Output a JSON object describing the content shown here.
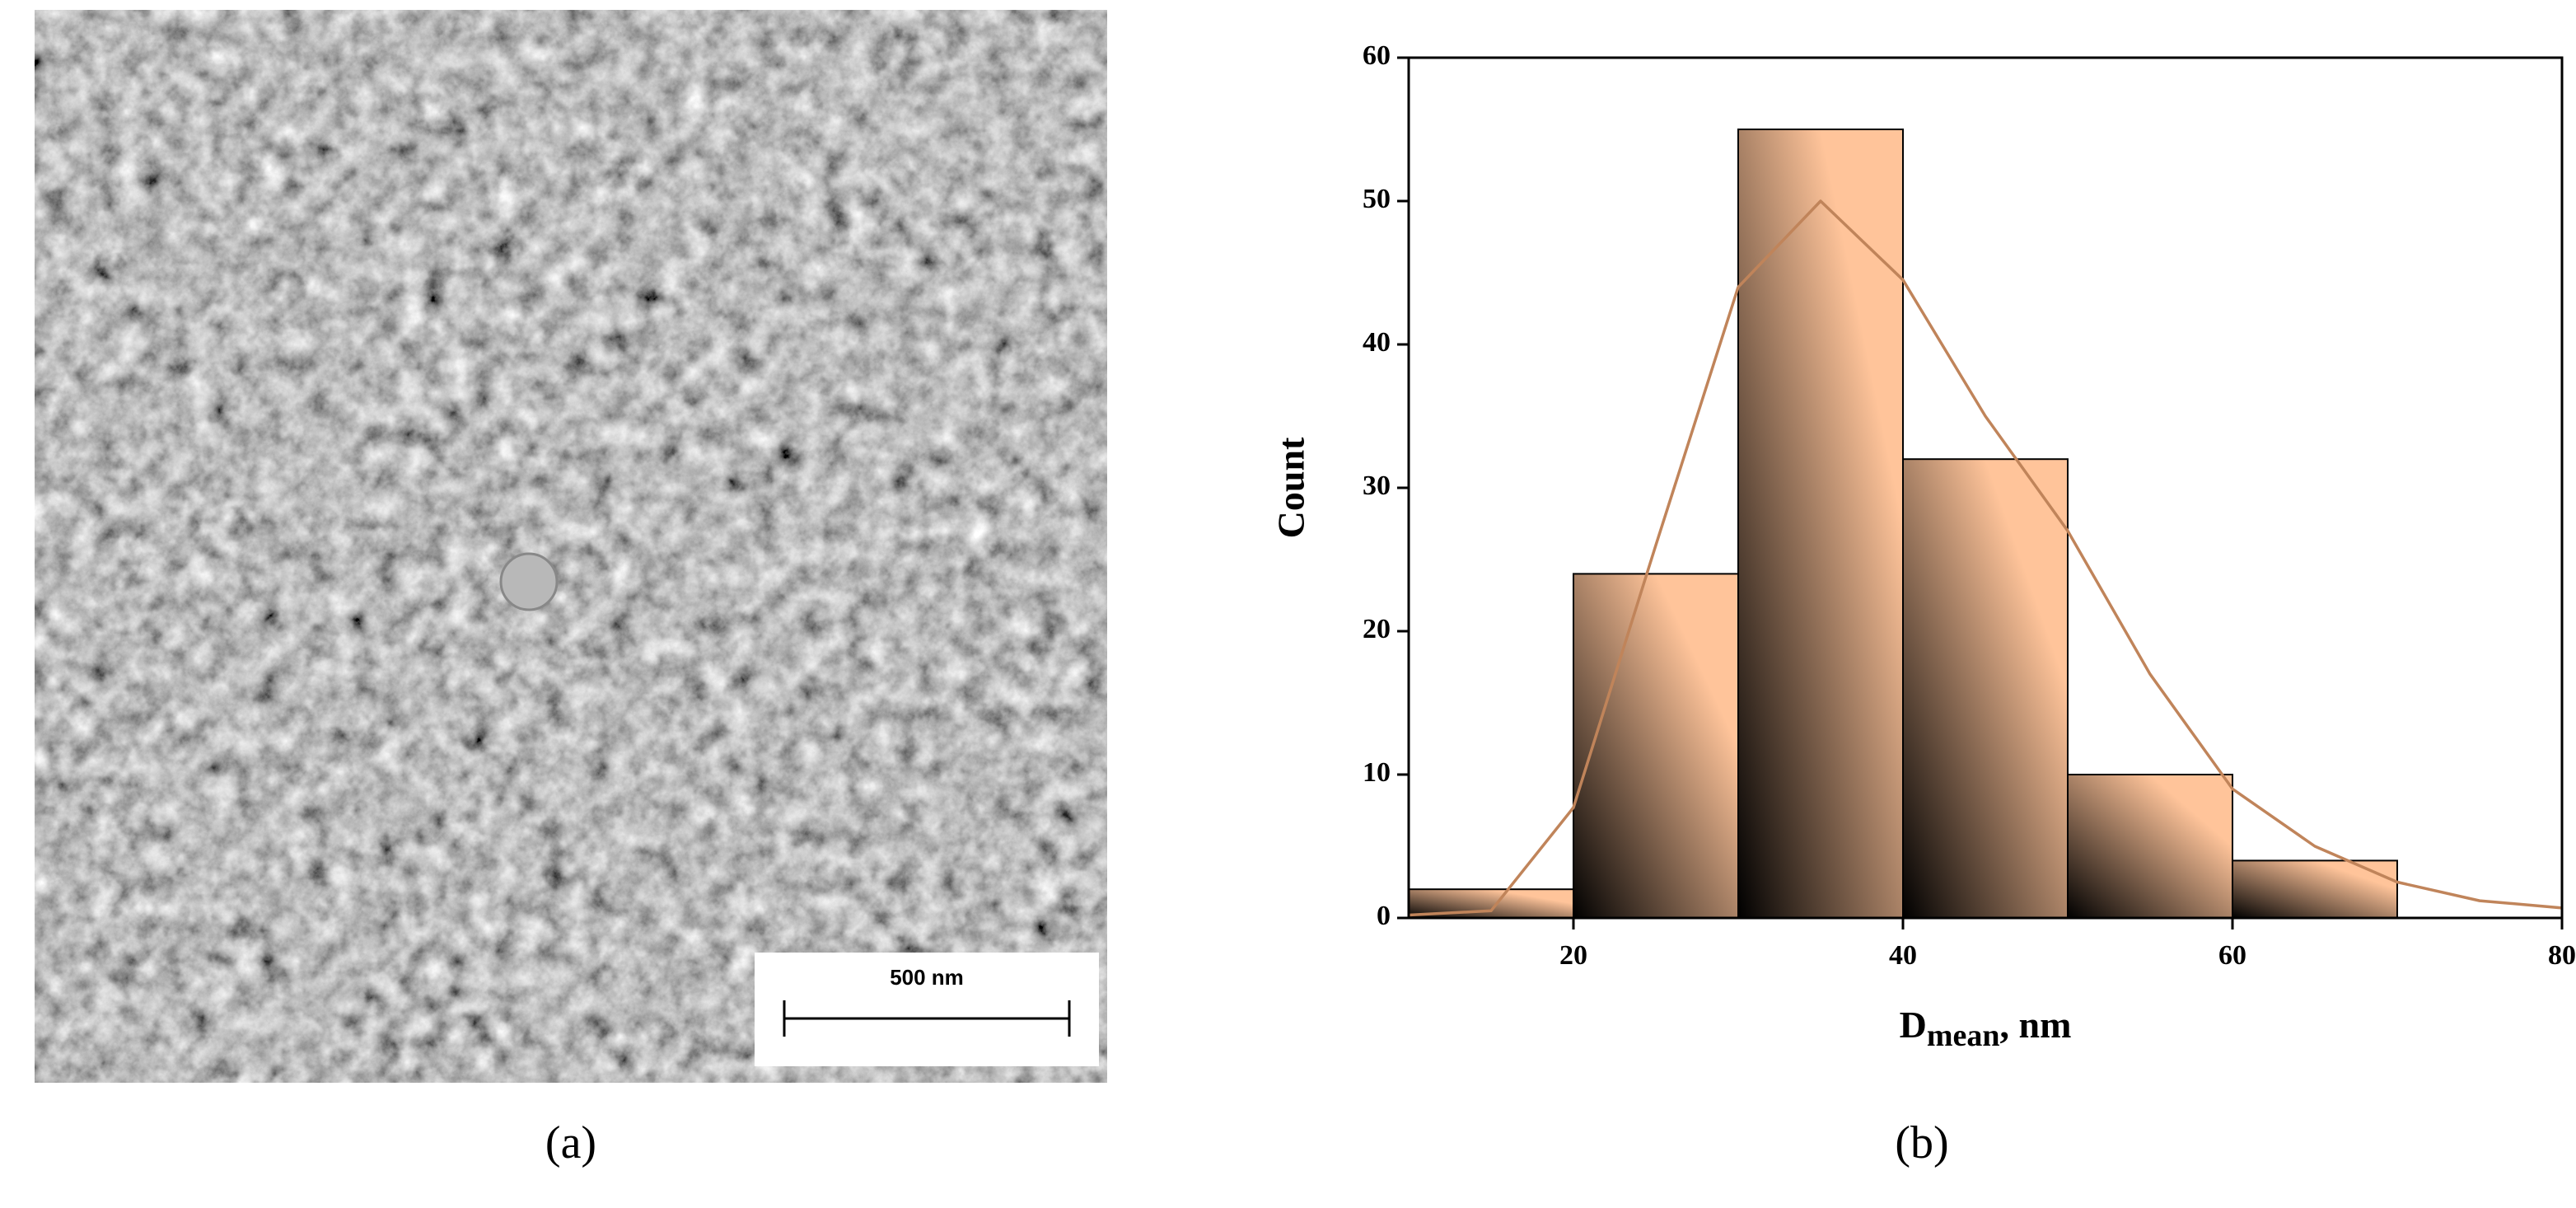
{
  "image": {
    "caption": "(a)",
    "scale_bar": "500 nm"
  },
  "chart_data": {
    "type": "histogram",
    "caption": "(b)",
    "xlabel": {
      "main": "D",
      "sub": "mean",
      "rest": ", nm"
    },
    "ylabel": "Count",
    "bins": [
      10,
      20,
      30,
      40,
      50,
      60,
      70
    ],
    "values": [
      2,
      24,
      55,
      32,
      10,
      4
    ],
    "color": "#ffc49a",
    "edge_color": "#000000",
    "fit": {
      "color": "#c0845a",
      "x": [
        10,
        15,
        20,
        25,
        30,
        35,
        40,
        45,
        50,
        55,
        60,
        65,
        70,
        75,
        80
      ],
      "values": [
        0.2,
        0.5,
        7.7,
        26,
        44,
        50,
        44.5,
        35,
        27,
        17,
        9,
        5,
        2.5,
        1.2,
        0.7
      ]
    },
    "xlim": [
      10,
      80
    ],
    "xticks": [
      20,
      40,
      60,
      80
    ],
    "ylim": [
      0,
      60
    ],
    "yticks": [
      0,
      10,
      20,
      30,
      40,
      50,
      60
    ]
  }
}
